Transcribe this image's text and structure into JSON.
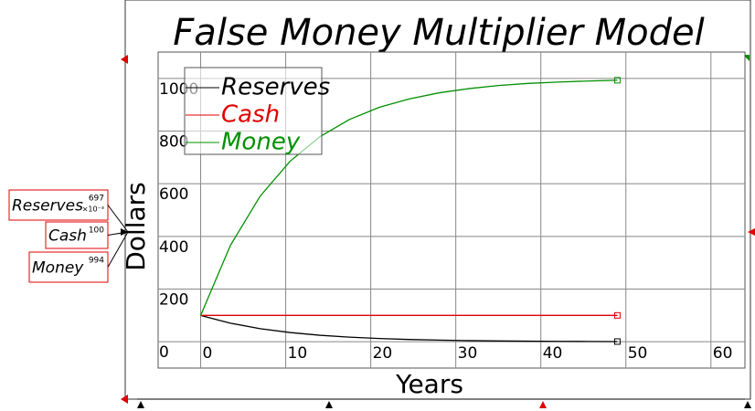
{
  "chart_data": {
    "type": "line",
    "title": "False Money Multiplier Model",
    "x_label": "Years",
    "y_label": "Dollars",
    "x": [
      0,
      3.5,
      7,
      10.5,
      14,
      17.5,
      21,
      24.5,
      28,
      31.5,
      35,
      38.5,
      42,
      45.5,
      49
    ],
    "series": [
      {
        "name": "Reserves",
        "color": "#000000",
        "values": [
          100,
          70.5,
          49.7,
          35,
          24.7,
          17.4,
          12.2,
          8.6,
          6.1,
          4.3,
          3.0,
          2.1,
          1.5,
          1.1,
          0.7
        ]
      },
      {
        "name": "Cash",
        "color": "#e00000",
        "values": [
          100,
          100,
          100,
          100,
          100,
          100,
          100,
          100,
          100,
          100,
          100,
          100,
          100,
          100,
          100
        ]
      },
      {
        "name": "Money",
        "color": "#009000",
        "values": [
          100,
          366,
          553,
          685,
          778,
          844,
          890,
          922,
          945,
          961,
          973,
          981,
          986,
          990,
          993
        ]
      }
    ],
    "xlim": [
      -5,
      64
    ],
    "xticks": [
      0,
      10,
      20,
      30,
      40,
      50,
      60
    ],
    "ylim": [
      -100,
      1100
    ],
    "yticks": [
      0,
      200,
      400,
      600,
      800,
      1000
    ],
    "grid": true,
    "legend": "upper left",
    "readouts": [
      {
        "name": "Reserves",
        "value": "697",
        "unit": "×10⁻³"
      },
      {
        "name": "Cash",
        "value": "100"
      },
      {
        "name": "Money",
        "value": "994"
      }
    ]
  }
}
